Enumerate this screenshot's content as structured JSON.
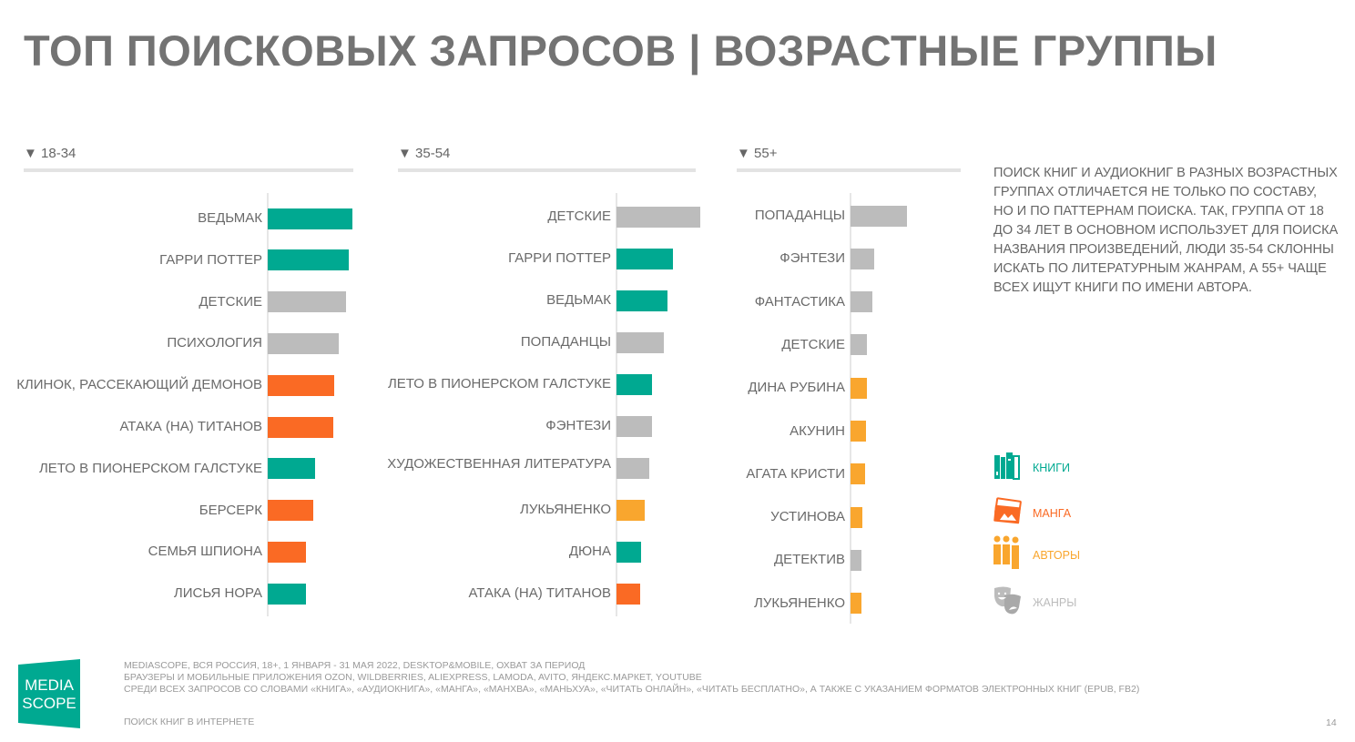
{
  "header": {
    "title": "ТОП ПОИСКОВЫХ ЗАПРОСОВ | ВОЗРАСТНЫЕ ГРУППЫ"
  },
  "colors": {
    "books": "#00a991",
    "manga": "#fa6a24",
    "authors": "#f9a62e",
    "genres": "#bcbcbc"
  },
  "chart_data": [
    {
      "type": "bar",
      "orientation": "horizontal",
      "title": "▼ 18-34",
      "categories": [
        "ВЕДЬМАК",
        "ГАРРИ ПОТТЕР",
        "ДЕТСКИЕ",
        "ПСИХОЛОГИЯ",
        "КЛИНОК, РАССЕКАЮЩИЙ ДЕМОНОВ",
        "АТАКА (НА) ТИТАНОВ",
        "ЛЕТО В ПИОНЕРСКОМ ГАЛСТУКЕ",
        "БЕРСЕРК",
        "СЕМЬЯ ШПИОНА",
        "ЛИСЬЯ НОРА"
      ],
      "values": [
        93,
        89,
        86,
        78,
        73,
        72,
        52,
        50,
        42,
        42
      ],
      "groups": [
        "books",
        "books",
        "genres",
        "genres",
        "manga",
        "manga",
        "books",
        "manga",
        "manga",
        "books"
      ],
      "xlim": [
        0,
        93
      ],
      "grid": false
    },
    {
      "type": "bar",
      "orientation": "horizontal",
      "title": "▼ 35-54",
      "categories": [
        "ДЕТСКИЕ",
        "ГАРРИ ПОТТЕР",
        "ВЕДЬМАК",
        "ПОПАДАНЦЫ",
        "ЛЕТО В ПИОНЕРСКОМ ГАЛСТУКЕ",
        "ФЭНТЕЗИ",
        "ХУДОЖЕСТВЕННАЯ ЛИТЕРАТУРА",
        "ЛУКЬЯНЕНКО",
        "ДЮНА",
        "АТАКА (НА) ТИТАНОВ"
      ],
      "values": [
        92,
        62,
        56,
        52,
        39,
        39,
        36,
        31,
        27,
        26
      ],
      "groups": [
        "genres",
        "books",
        "books",
        "genres",
        "books",
        "genres",
        "genres",
        "authors",
        "books",
        "manga"
      ],
      "xlim": [
        0,
        93
      ],
      "grid": false
    },
    {
      "type": "bar",
      "orientation": "horizontal",
      "title": "▼ 55+",
      "categories": [
        "ПОПАДАНЦЫ",
        "ФЭНТЕЗИ",
        "ФАНТАСТИКА",
        "ДЕТСКИЕ",
        "ДИНА РУБИНА",
        "АКУНИН",
        "АГАТА КРИСТИ",
        "УСТИНОВА",
        "ДЕТЕКТИВ",
        "ЛУКЬЯНЕНКО"
      ],
      "values": [
        62,
        26,
        24,
        18,
        18,
        17,
        16,
        13,
        12,
        12
      ],
      "groups": [
        "genres",
        "genres",
        "genres",
        "genres",
        "authors",
        "authors",
        "authors",
        "authors",
        "genres",
        "authors"
      ],
      "xlim": [
        0,
        93
      ],
      "grid": false
    }
  ],
  "note": "ПОИСК КНИГ И АУДИОКНИГ В РАЗНЫХ ВОЗРАСТНЫХ ГРУППАХ ОТЛИЧАЕТСЯ НЕ ТОЛЬКО ПО СОСТАВУ, НО И ПО ПАТТЕРНАМ ПОИСКА. ТАК, ГРУППА ОТ 18 ДО 34 ЛЕТ В ОСНОВНОМ ИСПОЛЬЗУЕТ ДЛЯ ПОИСКА НАЗВАНИЯ ПРОИЗВЕДЕНИЙ, ЛЮДИ 35-54 СКЛОННЫ ИСКАТЬ ПО ЛИТЕРАТУРНЫМ ЖАНРАМ, А 55+ ЧАЩЕ ВСЕХ ИЩУТ КНИГИ ПО ИМЕНИ АВТОРА.",
  "legend": [
    {
      "key": "books",
      "label": "КНИГИ",
      "icon": "books-icon"
    },
    {
      "key": "manga",
      "label": "МАНГА",
      "icon": "manga-icon"
    },
    {
      "key": "authors",
      "label": "АВТОРЫ",
      "icon": "authors-icon"
    },
    {
      "key": "genres",
      "label": "ЖАНРЫ",
      "icon": "theater-masks-icon"
    }
  ],
  "footer": {
    "line1": "MEDIASCOPE, ВСЯ РОССИЯ, 18+, 1 ЯНВАРЯ - 31 МАЯ 2022, DESKTOP&MOBILE, ОХВАТ ЗА ПЕРИОД",
    "line2": "БРАУЗЕРЫ И МОБИЛЬНЫЕ ПРИЛОЖЕНИЯ OZON, WILDBERRIES, ALIEXPRESS, LAMODA, AVITO, ЯНДЕКС.МАРКЕТ, YOUTUBE",
    "line3": "СРЕДИ ВСЕХ ЗАПРОСОВ СО СЛОВАМИ «КНИГА», «АУДИОКНИГА», «МАНГА», «МАНХВА», «МАНЬХУА», «ЧИТАТЬ ОНЛАЙН», «ЧИТАТЬ БЕСПЛАТНО», А ТАКЖЕ С УКАЗАНИЕМ ФОРМАТОВ ЭЛЕКТРОННЫХ КНИГ (EPUB, FB2)",
    "section": "ПОИСК КНИГ В ИНТЕРНЕТЕ",
    "page": "14"
  },
  "logo": {
    "text_top": "MEDIA",
    "text_bottom": "SCOPE",
    "color": "#00a991"
  }
}
